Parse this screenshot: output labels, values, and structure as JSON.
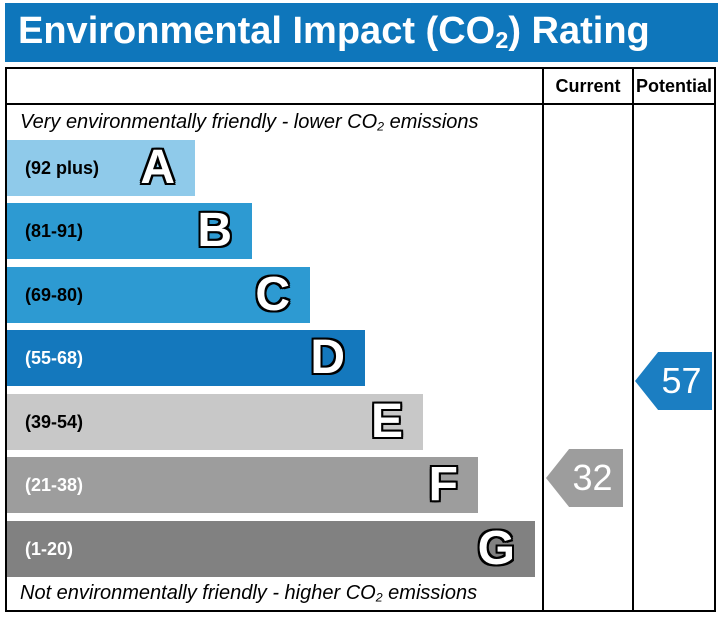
{
  "title": {
    "pre": "Environmental Impact (CO",
    "sub": "2",
    "post": ") Rating"
  },
  "header": {
    "current_label": "Current",
    "potential_label": "Potential"
  },
  "captions": {
    "top": {
      "pre": "Very environmentally friendly - lower CO",
      "sub": "2",
      "post": " emissions"
    },
    "bottom": {
      "pre": "Not environmentally friendly - higher CO",
      "sub": "2",
      "post": " emissions"
    }
  },
  "chart_data": {
    "type": "bar",
    "title": "Environmental Impact (CO2) Rating",
    "bands": [
      {
        "letter": "A",
        "range_label": "(92 plus)",
        "range_min": 92,
        "range_max": 100,
        "color": "#8fcaea"
      },
      {
        "letter": "B",
        "range_label": "(81-91)",
        "range_min": 81,
        "range_max": 91,
        "color": "#2d9ad2"
      },
      {
        "letter": "C",
        "range_label": "(69-80)",
        "range_min": 69,
        "range_max": 80,
        "color": "#2d9ad2"
      },
      {
        "letter": "D",
        "range_label": "(55-68)",
        "range_min": 55,
        "range_max": 68,
        "color": "#1478bd"
      },
      {
        "letter": "E",
        "range_label": "(39-54)",
        "range_min": 39,
        "range_max": 54,
        "color": "#c8c8c8"
      },
      {
        "letter": "F",
        "range_label": "(21-38)",
        "range_min": 21,
        "range_max": 38,
        "color": "#9d9d9d"
      },
      {
        "letter": "G",
        "range_label": "(1-20)",
        "range_min": 1,
        "range_max": 20,
        "color": "#818181"
      }
    ],
    "markers": {
      "current": {
        "value": "32",
        "band": "F",
        "color": "#9d9d9d"
      },
      "potential": {
        "value": "57",
        "band": "D",
        "color": "#1b7ec2"
      }
    }
  },
  "colors": {
    "title_bar": "#0e76bb",
    "border": "#000000",
    "background": "#ffffff"
  }
}
